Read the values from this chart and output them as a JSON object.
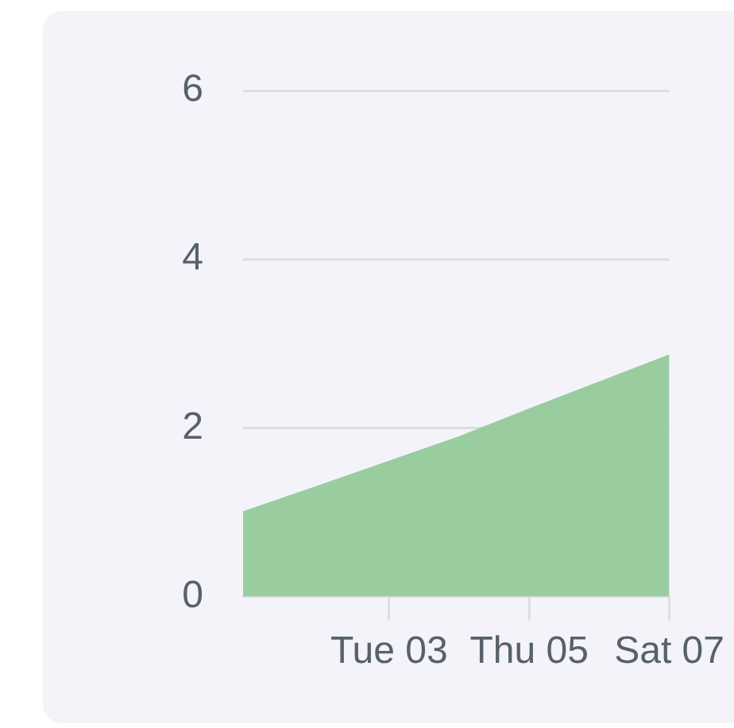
{
  "chart_data": {
    "type": "area",
    "x": [
      "--02-29T22:00",
      "--03-02",
      "--03-03",
      "--03-04",
      "--03-05",
      "--03-06",
      "--03-07"
    ],
    "values": [
      1.0,
      1.31,
      1.6,
      1.89,
      2.22,
      2.54,
      2.86
    ],
    "color": "#99cda0",
    "xlim": [
      "--02-29T22:00",
      "--03-07"
    ],
    "xticks": [
      {
        "value": "--03-03",
        "label": "Tue 03"
      },
      {
        "value": "--03-05",
        "label": "Thu 05"
      },
      {
        "value": "--03-07",
        "label": "Sat 07"
      }
    ],
    "ylim": [
      0,
      6
    ],
    "yticks": [
      0,
      2,
      4,
      6
    ],
    "grid": "y",
    "legend": false,
    "marker": "none"
  }
}
